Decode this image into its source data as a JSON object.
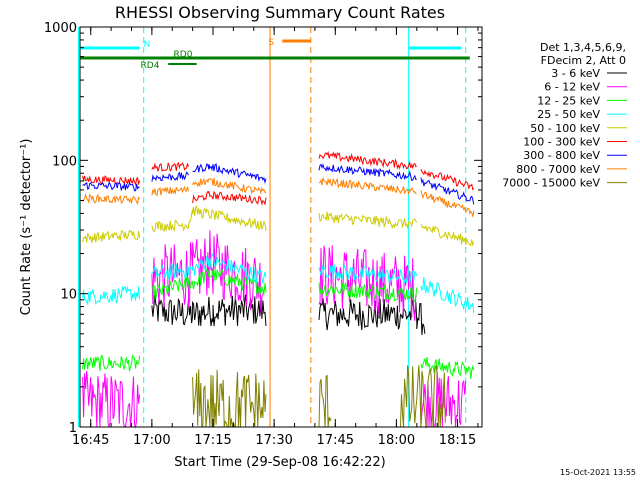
{
  "chart_data": {
    "type": "line",
    "title": "RHESSI Observing Summary Count Rates",
    "xlabel": "Start Time (29-Sep-08 16:42:22)",
    "ylabel": "Count Rate (s⁻¹ detector⁻¹)",
    "y_scale": "log",
    "ylim": [
      1,
      1000
    ],
    "xlim": [
      "16:42:22",
      "18:21:00"
    ],
    "x_ticks": [
      "16:45",
      "17:00",
      "17:15",
      "17:30",
      "17:45",
      "18:00",
      "18:15"
    ],
    "y_ticks": [
      "1",
      "10",
      "100",
      "1000"
    ],
    "legend_header": [
      "Det 1,3,4,5,6,9,",
      "FDecim 2, Att 0"
    ],
    "legend_position": "right",
    "footer_date": "15-Oct-2021 13:55",
    "status_bars": [
      {
        "label": "N",
        "color": "#00ffff",
        "segments": [
          [
            "16:42",
            "16:57"
          ],
          [
            "18:03",
            "18:16"
          ]
        ]
      },
      {
        "label": "S",
        "color": "#ff7f00",
        "segments": [
          [
            "17:32",
            "17:39"
          ]
        ]
      },
      {
        "label": "RD0",
        "color": "#008000",
        "segments": [
          [
            "16:42",
            "18:18"
          ]
        ]
      },
      {
        "label": "RD4",
        "color": "#008000",
        "segments": [
          [
            "17:04",
            "17:11"
          ]
        ]
      }
    ],
    "markers": [
      {
        "time": "16:58",
        "color": "#00ffff",
        "style": "dashed"
      },
      {
        "time": "18:17",
        "color": "#00ffff",
        "style": "dashed"
      },
      {
        "time": "18:03",
        "color": "#00ffff",
        "style": "solid"
      },
      {
        "time": "16:42",
        "color": "#00ffff",
        "style": "solid"
      },
      {
        "time": "17:29",
        "color": "#ff7f00",
        "style": "solid"
      },
      {
        "time": "17:39",
        "color": "#ff7f00",
        "style": "dashed"
      }
    ],
    "series": [
      {
        "name": "3 - 6 keV",
        "color": "#000000",
        "noise": 0.12,
        "segments": [
          [
            [
              "17:00",
              7.5
            ],
            [
              "17:10",
              7
            ],
            [
              "17:15",
              7.5
            ],
            [
              "17:28",
              7.5
            ]
          ],
          [
            [
              "17:41",
              7
            ],
            [
              "18:05",
              7
            ],
            [
              "18:07",
              6
            ]
          ]
        ]
      },
      {
        "name": "6 - 12 keV",
        "color": "#ff00ff",
        "noise": 0.25,
        "segments": [
          [
            [
              "16:43",
              1.5
            ],
            [
              "16:57",
              1.5
            ]
          ],
          [
            [
              "17:00",
              13
            ],
            [
              "17:09",
              14
            ],
            [
              "17:10",
              14
            ],
            [
              "17:14",
              17
            ],
            [
              "17:28",
              12
            ]
          ],
          [
            [
              "17:41",
              14
            ],
            [
              "18:05",
              11
            ]
          ],
          [
            [
              "18:06",
              1.5
            ],
            [
              "18:17",
              1.5
            ]
          ]
        ]
      },
      {
        "name": "12 - 25 keV",
        "color": "#00ff00",
        "noise": 0.06,
        "segments": [
          [
            [
              "16:43",
              3
            ],
            [
              "16:57",
              3
            ]
          ],
          [
            [
              "17:00",
              10
            ],
            [
              "17:09",
              12
            ],
            [
              "17:10",
              12
            ],
            [
              "17:14",
              14
            ],
            [
              "17:28",
              11
            ]
          ],
          [
            [
              "17:41",
              11
            ],
            [
              "18:05",
              10
            ]
          ],
          [
            [
              "18:06",
              3
            ],
            [
              "18:19",
              2.6
            ]
          ]
        ]
      },
      {
        "name": "25 - 50 keV",
        "color": "#00ffff",
        "noise": 0.06,
        "segments": [
          [
            [
              "16:43",
              9.5
            ],
            [
              "16:57",
              10
            ]
          ],
          [
            [
              "17:00",
              14
            ],
            [
              "17:09",
              15
            ],
            [
              "17:10",
              15
            ],
            [
              "17:14",
              18
            ],
            [
              "17:28",
              13
            ]
          ],
          [
            [
              "17:41",
              15
            ],
            [
              "18:05",
              13
            ]
          ],
          [
            [
              "18:06",
              12
            ],
            [
              "18:19",
              8
            ]
          ]
        ]
      },
      {
        "name": "50 - 100 keV",
        "color": "#cccc00",
        "noise": 0.04,
        "segments": [
          [
            [
              "16:43",
              26
            ],
            [
              "16:57",
              28
            ]
          ],
          [
            [
              "17:00",
              32
            ],
            [
              "17:09",
              33
            ],
            [
              "17:10",
              42
            ],
            [
              "17:28",
              32
            ]
          ],
          [
            [
              "17:41",
              38
            ],
            [
              "18:05",
              33
            ]
          ],
          [
            [
              "18:06",
              32
            ],
            [
              "18:19",
              24
            ]
          ]
        ]
      },
      {
        "name": "100 - 300 keV",
        "color": "#ff0000",
        "noise": 0.03,
        "segments": [
          [
            [
              "16:43",
              72
            ],
            [
              "16:57",
              70
            ]
          ],
          [
            [
              "17:00",
              88
            ],
            [
              "17:09",
              90
            ]
          ],
          [
            [
              "17:10",
              50
            ],
            [
              "17:14",
              55
            ],
            [
              "17:28",
              50
            ]
          ],
          [
            [
              "17:41",
              110
            ],
            [
              "18:05",
              90
            ]
          ],
          [
            [
              "18:06",
              85
            ],
            [
              "18:19",
              62
            ]
          ]
        ]
      },
      {
        "name": "300 - 800 keV",
        "color": "#0000ff",
        "noise": 0.03,
        "segments": [
          [
            [
              "16:43",
              65
            ],
            [
              "16:57",
              63
            ]
          ],
          [
            [
              "17:00",
              74
            ],
            [
              "17:09",
              76
            ]
          ],
          [
            [
              "17:10",
              85
            ],
            [
              "17:14",
              90
            ],
            [
              "17:28",
              72
            ]
          ],
          [
            [
              "17:41",
              90
            ],
            [
              "18:05",
              75
            ]
          ],
          [
            [
              "18:06",
              70
            ],
            [
              "18:19",
              50
            ]
          ]
        ]
      },
      {
        "name": "800 - 7000 keV",
        "color": "#ff7f00",
        "noise": 0.03,
        "segments": [
          [
            [
              "16:43",
              52
            ],
            [
              "16:57",
              50
            ]
          ],
          [
            [
              "17:00",
              58
            ],
            [
              "17:09",
              60
            ]
          ],
          [
            [
              "17:10",
              68
            ],
            [
              "17:14",
              70
            ],
            [
              "17:28",
              57
            ]
          ],
          [
            [
              "17:41",
              70
            ],
            [
              "18:05",
              58
            ]
          ],
          [
            [
              "18:06",
              56
            ],
            [
              "18:19",
              40
            ]
          ]
        ]
      },
      {
        "name": "7000 - 15000 keV",
        "color": "#808000",
        "noise": 0.3,
        "segments": [
          [
            [
              "17:10",
              1.4
            ],
            [
              "17:28",
              1.4
            ]
          ],
          [
            [
              "17:41",
              1.4
            ],
            [
              "17:44",
              1.4
            ]
          ],
          [
            [
              "18:01",
              1.5
            ],
            [
              "18:12",
              1.5
            ]
          ]
        ]
      }
    ]
  }
}
